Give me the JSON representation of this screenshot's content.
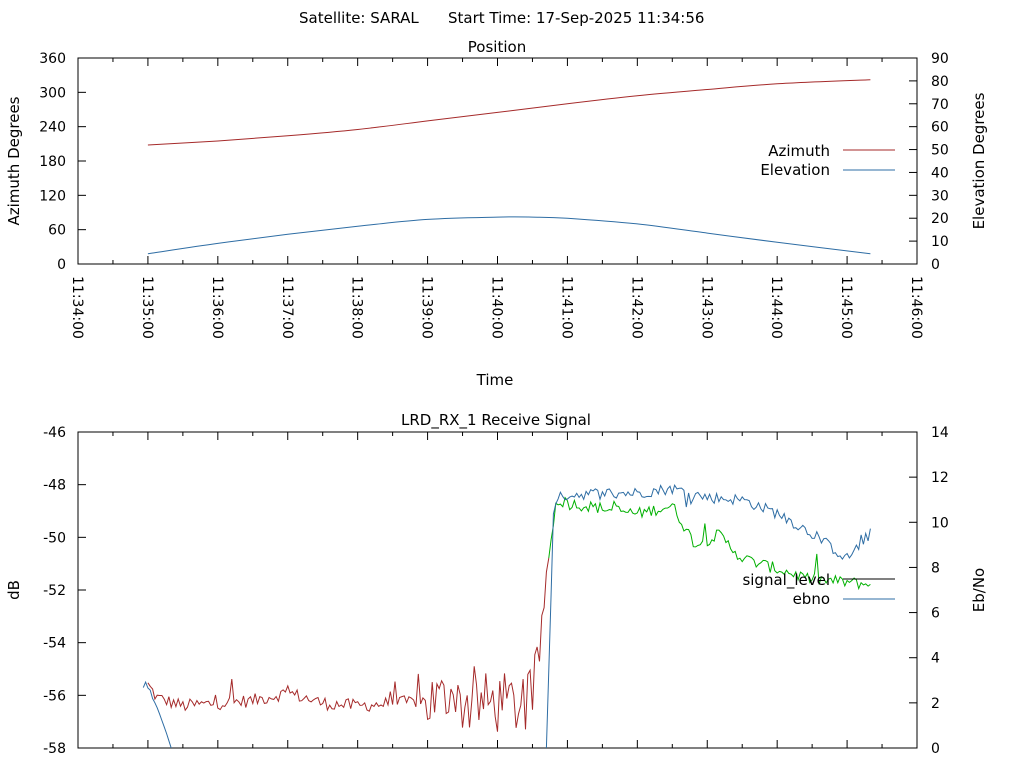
{
  "header": {
    "satellite": "Satellite: SARAL",
    "start_time": "Start Time: 17-Sep-2025 11:34:56"
  },
  "chart_data": [
    {
      "type": "line",
      "title": "Position",
      "xlabel": "Time",
      "ylabel": "Azimuth Degrees",
      "y2label": "Elevation Degrees",
      "xlim": [
        "11:34:00",
        "11:46:00"
      ],
      "x_ticks": [
        "11:34:00",
        "11:35:00",
        "11:36:00",
        "11:37:00",
        "11:38:00",
        "11:39:00",
        "11:40:00",
        "11:41:00",
        "11:42:00",
        "11:43:00",
        "11:44:00",
        "11:45:00",
        "11:46:00"
      ],
      "ylim": [
        0,
        360
      ],
      "y_ticks": [
        "0",
        "60",
        "120",
        "180",
        "240",
        "300",
        "360"
      ],
      "y2lim": [
        0,
        90
      ],
      "y2_ticks": [
        "0",
        "10",
        "20",
        "30",
        "40",
        "50",
        "60",
        "70",
        "80",
        "90"
      ],
      "legend_position": "right",
      "grid": false,
      "series": [
        {
          "name": "Azimuth",
          "axis": "left",
          "color": "#a52a2a",
          "x": [
            "11:35:00",
            "11:36:00",
            "11:37:00",
            "11:38:00",
            "11:39:00",
            "11:40:00",
            "11:41:00",
            "11:42:00",
            "11:43:00",
            "11:44:00",
            "11:45:20"
          ],
          "values": [
            208,
            215,
            224,
            235,
            250,
            265,
            280,
            294,
            305,
            315,
            322
          ]
        },
        {
          "name": "Elevation",
          "axis": "right",
          "color": "#2e6da4",
          "x": [
            "11:35:00",
            "11:36:00",
            "11:37:00",
            "11:38:00",
            "11:39:00",
            "11:40:00",
            "11:40:30",
            "11:41:00",
            "11:42:00",
            "11:43:00",
            "11:44:00",
            "11:45:20"
          ],
          "values": [
            4.5,
            9,
            13,
            16.5,
            19.5,
            20.5,
            20.5,
            20,
            17.5,
            13.5,
            9.5,
            4.5
          ]
        }
      ]
    },
    {
      "type": "line",
      "title": "LRD_RX_1 Receive Signal",
      "ylabel": "dB",
      "y2label": "Eb/No",
      "xlim": [
        "11:34:00",
        "11:46:00"
      ],
      "ylim": [
        -58,
        -46
      ],
      "y_ticks": [
        "-58",
        "-56",
        "-54",
        "-52",
        "-50",
        "-48",
        "-46"
      ],
      "y2lim": [
        0,
        14
      ],
      "y2_ticks": [
        "0",
        "2",
        "4",
        "6",
        "8",
        "10",
        "12",
        "14"
      ],
      "legend_position": "right",
      "grid": false,
      "series": [
        {
          "name": "signal_level",
          "axis": "left",
          "color_low": "#a52a2a",
          "color_high": "#00b000",
          "x": [
            "11:35:00",
            "11:35:08",
            "11:35:30",
            "11:36:00",
            "11:36:30",
            "11:37:00",
            "11:37:30",
            "11:38:00",
            "11:38:30",
            "11:39:00",
            "11:39:30",
            "11:40:00",
            "11:40:30",
            "11:40:45",
            "11:40:50",
            "11:41:00",
            "11:41:30",
            "11:42:00",
            "11:42:30",
            "11:42:50",
            "11:43:10",
            "11:43:30",
            "11:44:00",
            "11:44:30",
            "11:45:00",
            "11:45:20"
          ],
          "values": [
            -55.6,
            -56.1,
            -56.4,
            -56.3,
            -56.2,
            -55.9,
            -56.3,
            -56.4,
            -56.3,
            -56.2,
            -56.3,
            -56.3,
            -56.4,
            -50.5,
            -48.6,
            -48.7,
            -48.9,
            -49.1,
            -48.8,
            -50.3,
            -49.9,
            -50.8,
            -51.2,
            -51.6,
            -51.7,
            -51.8
          ]
        },
        {
          "name": "ebno",
          "axis": "right",
          "color": "#2e6da4",
          "x": [
            "11:34:56",
            "11:35:05",
            "11:35:15",
            "11:35:20",
            "11:40:42",
            "11:40:48",
            "11:40:55",
            "11:41:30",
            "11:42:00",
            "11:42:30",
            "11:43:00",
            "11:43:30",
            "11:44:00",
            "11:44:30",
            "11:45:00",
            "11:45:20"
          ],
          "values": [
            2.9,
            2.2,
            0.8,
            0,
            0,
            10.5,
            11.2,
            11.3,
            11.3,
            11.5,
            11.1,
            11.0,
            10.4,
            9.5,
            8.4,
            9.5
          ]
        }
      ]
    }
  ]
}
